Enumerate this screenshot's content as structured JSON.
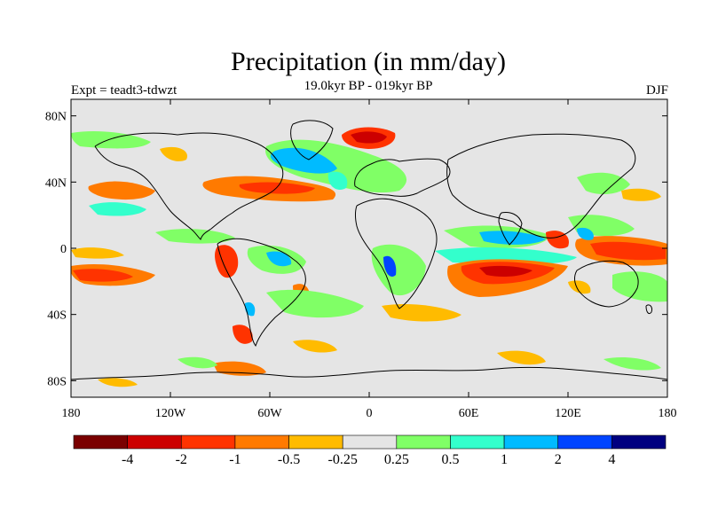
{
  "header": {
    "title": "Precipitation (in mm/day)",
    "subtitle": "19.0kyr BP - 019kyr BP",
    "left_label": "Expt = teadt3-tdwzt",
    "right_label": "DJF"
  },
  "axes": {
    "y_ticks": [
      {
        "label": "80N",
        "lat": 80
      },
      {
        "label": "40N",
        "lat": 40
      },
      {
        "label": "0",
        "lat": 0
      },
      {
        "label": "40S",
        "lat": -40
      },
      {
        "label": "80S",
        "lat": -80
      }
    ],
    "x_ticks": [
      {
        "label": "180",
        "lon": -180
      },
      {
        "label": "120W",
        "lon": -120
      },
      {
        "label": "60W",
        "lon": -60
      },
      {
        "label": "0",
        "lon": 0
      },
      {
        "label": "60E",
        "lon": 60
      },
      {
        "label": "120E",
        "lon": 120
      },
      {
        "label": "180",
        "lon": 180
      }
    ]
  },
  "colorbar": {
    "colors": [
      "#7a0000",
      "#cc0000",
      "#ff3300",
      "#ff7a00",
      "#ffbb00",
      "#e5e5e5",
      "#80ff66",
      "#33ffcc",
      "#00bbff",
      "#0044ff",
      "#000080"
    ],
    "labels": [
      {
        "text": "-4",
        "boundary": 1
      },
      {
        "text": "-2",
        "boundary": 2
      },
      {
        "text": "-1",
        "boundary": 3
      },
      {
        "text": "-0.5",
        "boundary": 4
      },
      {
        "text": "-0.25",
        "boundary": 5
      },
      {
        "text": "0.25",
        "boundary": 6
      },
      {
        "text": "0.5",
        "boundary": 7
      },
      {
        "text": "1",
        "boundary": 8
      },
      {
        "text": "2",
        "boundary": 9
      },
      {
        "text": "4",
        "boundary": 10
      }
    ]
  },
  "map": {
    "background": "#e5e5e5",
    "lon_range": [
      -180,
      180
    ],
    "lat_range": [
      -90,
      90
    ]
  }
}
